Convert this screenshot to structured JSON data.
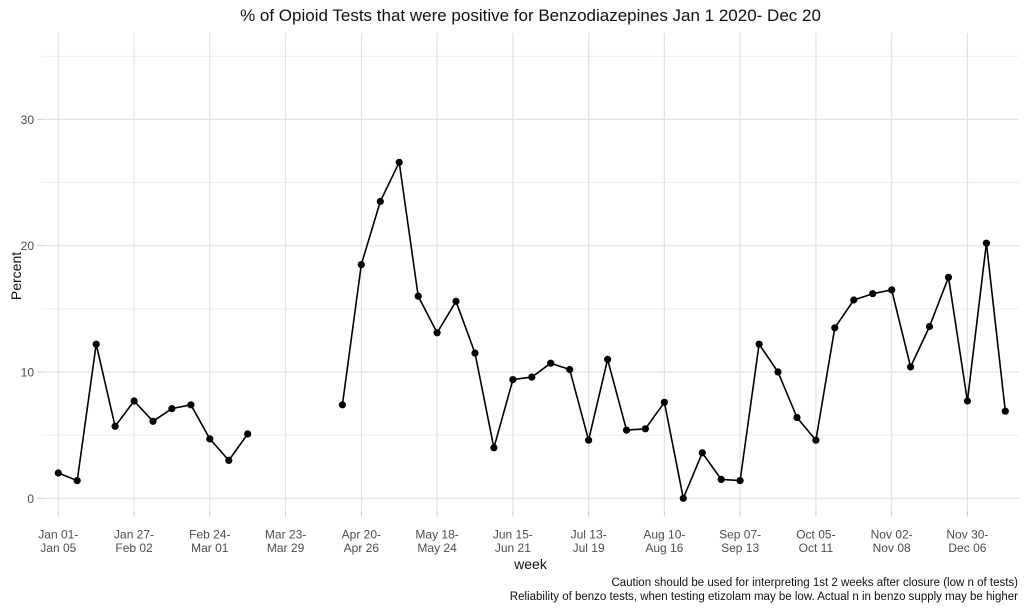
{
  "chart_data": {
    "type": "line",
    "title": "% of Opioid Tests that were positive for Benzodiazepines Jan 1 2020- Dec 20",
    "xlabel": "week",
    "ylabel": "Percent",
    "ylim": [
      0,
      36
    ],
    "yticks": [
      0,
      10,
      20,
      30
    ],
    "y_minor_gridlines": [
      5,
      15,
      25,
      35
    ],
    "grid": "light gray gridlines on white background, no panel border",
    "legend": "none",
    "x_unit": "week number of 2020 (week 1 = Jan 01-Jan 05), data gap weeks 12-15",
    "xticks": [
      {
        "week": 1,
        "label": [
          "Jan 01-",
          "Jan 05"
        ]
      },
      {
        "week": 5,
        "label": [
          "Jan 27-",
          "Feb 02"
        ]
      },
      {
        "week": 9,
        "label": [
          "Feb 24-",
          "Mar 01"
        ]
      },
      {
        "week": 13,
        "label": [
          "Mar 23-",
          "Mar 29"
        ]
      },
      {
        "week": 17,
        "label": [
          "Apr 20-",
          "Apr 26"
        ]
      },
      {
        "week": 21,
        "label": [
          "May 18-",
          "May 24"
        ]
      },
      {
        "week": 25,
        "label": [
          "Jun 15-",
          "Jun 21"
        ]
      },
      {
        "week": 29,
        "label": [
          "Jul 13-",
          "Jul 19"
        ]
      },
      {
        "week": 33,
        "label": [
          "Aug 10-",
          "Aug 16"
        ]
      },
      {
        "week": 37,
        "label": [
          "Sep 07-",
          "Sep 13"
        ]
      },
      {
        "week": 41,
        "label": [
          "Oct 05-",
          "Oct 11"
        ]
      },
      {
        "week": 45,
        "label": [
          "Nov 02-",
          "Nov 08"
        ]
      },
      {
        "week": 49,
        "label": [
          "Nov 30-",
          "Dec 06"
        ]
      }
    ],
    "series": [
      {
        "name": "% of opioid tests positive for benzodiazepines",
        "color": "#000000",
        "segments": [
          {
            "weeks": [
              1,
              2,
              3,
              4,
              5,
              6,
              7,
              8,
              9,
              10,
              11
            ],
            "values": [
              2.0,
              1.4,
              12.2,
              5.7,
              7.7,
              6.1,
              7.1,
              7.4,
              4.7,
              3.0,
              5.1
            ]
          },
          {
            "weeks": [
              16,
              17,
              18,
              19,
              20,
              21,
              22,
              23,
              24,
              25,
              26,
              27,
              28,
              29,
              30,
              31,
              32,
              33,
              34,
              35,
              36,
              37,
              38,
              39,
              40,
              41,
              42,
              43,
              44,
              45,
              46,
              47,
              48,
              49,
              50,
              51
            ],
            "values": [
              7.4,
              18.5,
              23.5,
              26.6,
              16.0,
              13.1,
              15.6,
              11.5,
              4.0,
              9.4,
              9.6,
              10.7,
              10.2,
              4.6,
              11.0,
              5.4,
              5.5,
              7.6,
              0.0,
              3.6,
              1.5,
              1.4,
              12.2,
              10.0,
              6.4,
              4.6,
              13.5,
              15.7,
              16.2,
              16.5,
              10.4,
              13.6,
              17.5,
              7.7,
              20.2,
              6.9
            ]
          }
        ]
      }
    ],
    "captions": [
      "Caution should be used for interpreting 1st 2 weeks after closure (low n of tests)",
      "Reliability of benzo tests, when testing etizolam may be low. Actual n in benzo supply may be higher"
    ]
  }
}
